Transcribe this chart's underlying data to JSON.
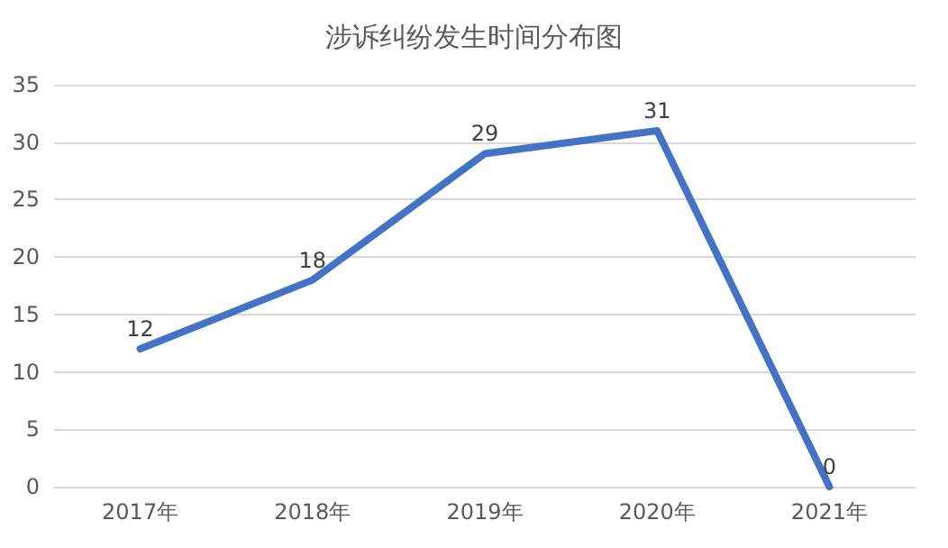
{
  "chart_data": {
    "type": "line",
    "title": "涉诉纠纷发生时间分布图",
    "categories": [
      "2017年",
      "2018年",
      "2019年",
      "2020年",
      "2021年"
    ],
    "series": [
      {
        "color": "#4472c4",
        "values": [
          12,
          18,
          29,
          31,
          0
        ]
      }
    ],
    "ylim": [
      0,
      35
    ],
    "yticks": [
      0,
      5,
      10,
      15,
      20,
      25,
      30,
      35
    ],
    "grid": "y",
    "marker": "none",
    "line_style": "solid",
    "data_labels": true
  }
}
